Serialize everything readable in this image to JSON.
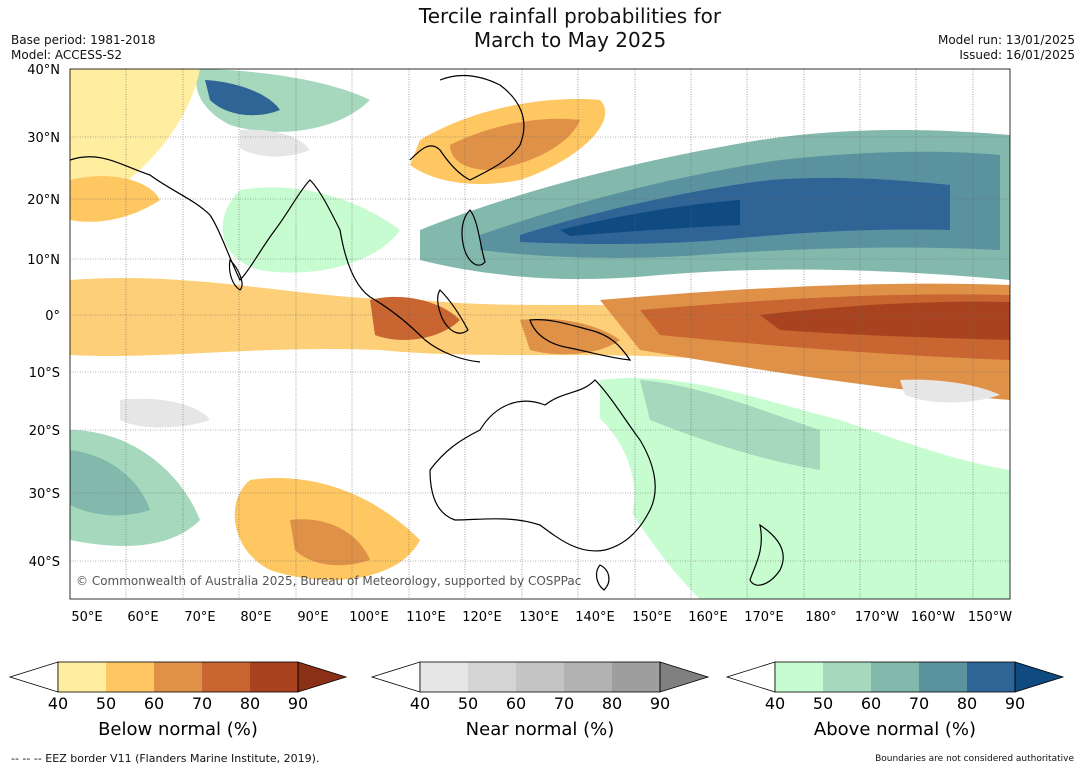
{
  "title_line1": "Tercile rainfall probabilities for",
  "title_line2": "March to May 2025",
  "base_period": "Base period: 1981-2018",
  "model": "Model: ACCESS-S2",
  "model_run": "Model run: 13/01/2025",
  "issued": "Issued: 16/01/2025",
  "copyright": "© Commonwealth of Australia 2025, Bureau of Meteorology, supported by COSPPac",
  "lat_labels": [
    "40°N",
    "30°N",
    "20°N",
    "10°N",
    "0°",
    "10°S",
    "20°S",
    "30°S",
    "40°S"
  ],
  "lon_labels": [
    "50°E",
    "60°E",
    "70°E",
    "80°E",
    "90°E",
    "100°E",
    "110°E",
    "120°E",
    "130°E",
    "140°E",
    "150°E",
    "160°E",
    "170°E",
    "180°",
    "170°W",
    "160°W",
    "150°W"
  ],
  "legends": [
    {
      "title": "Below normal (%)",
      "ticks": [
        "40",
        "50",
        "60",
        "70",
        "80",
        "90"
      ],
      "colors": [
        "#ffeda0",
        "#fec762",
        "#e09148",
        "#c96530",
        "#a9431f"
      ],
      "extend_color": "#8b2f17"
    },
    {
      "title": "Near normal (%)",
      "ticks": [
        "40",
        "50",
        "60",
        "70",
        "80",
        "90"
      ],
      "colors": [
        "#e6e6e6",
        "#d4d4d4",
        "#c4c4c4",
        "#b2b2b2",
        "#9e9e9e"
      ],
      "extend_color": "#808080"
    },
    {
      "title": "Above normal (%)",
      "ticks": [
        "40",
        "50",
        "60",
        "70",
        "80",
        "90"
      ],
      "colors": [
        "#c7fcd0",
        "#a5d8bc",
        "#82b9ac",
        "#5a92a0",
        "#2e6496"
      ],
      "extend_color": "#0f4a80"
    }
  ],
  "footer_left": "-- -- -- EEZ border V11 (Flanders Marine Institute, 2019).",
  "footer_right": "Boundaries are not considered authoritative"
}
